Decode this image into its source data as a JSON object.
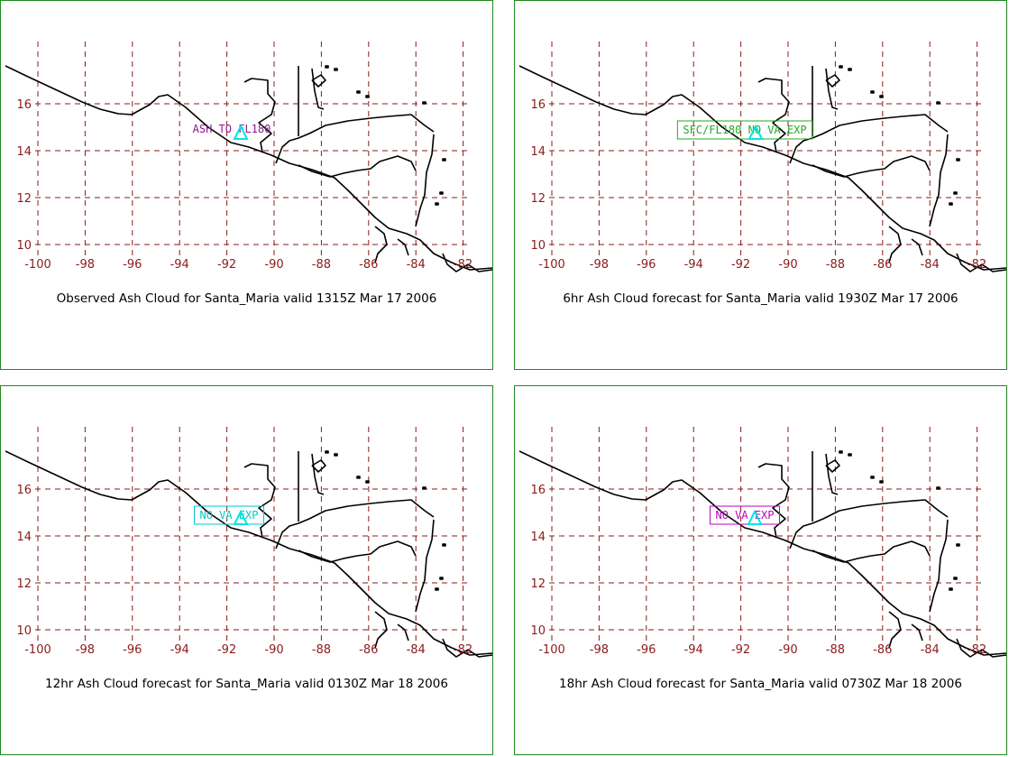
{
  "colors": {
    "grid": "#8b1a1a",
    "axis_labels": "#8b1a1a",
    "coast": "#000000",
    "volcano": "#00e5e5",
    "panel_border": "#1f8a1f"
  },
  "axes": {
    "x_ticks": [
      "-100",
      "-98",
      "-96",
      "-94",
      "-92",
      "-90",
      "-88",
      "-86",
      "-84",
      "-82"
    ],
    "y_ticks": [
      "16",
      "14",
      "12",
      "10"
    ]
  },
  "panels": [
    {
      "caption": "Observed Ash Cloud for Santa_Maria valid 1315Z Mar 17 2006",
      "label": "ASH TO FL180",
      "label_color": "#8b1a8b",
      "label_boxed": false
    },
    {
      "caption": "6hr Ash Cloud forecast for Santa_Maria valid 1930Z Mar 17 2006",
      "label": "SFC/FL180 NO VA EXP",
      "label_color": "#22aa22",
      "label_boxed": true
    },
    {
      "caption": "12hr Ash Cloud forecast for Santa_Maria valid 0130Z Mar 18 2006",
      "label": "NO VA EXP",
      "label_color": "#00c8c8",
      "label_boxed": true
    },
    {
      "caption": "18hr Ash Cloud forecast for Santa_Maria valid 0730Z Mar 18 2006",
      "label": "NO VA EXP",
      "label_color": "#c000c0",
      "label_boxed": true
    }
  ]
}
